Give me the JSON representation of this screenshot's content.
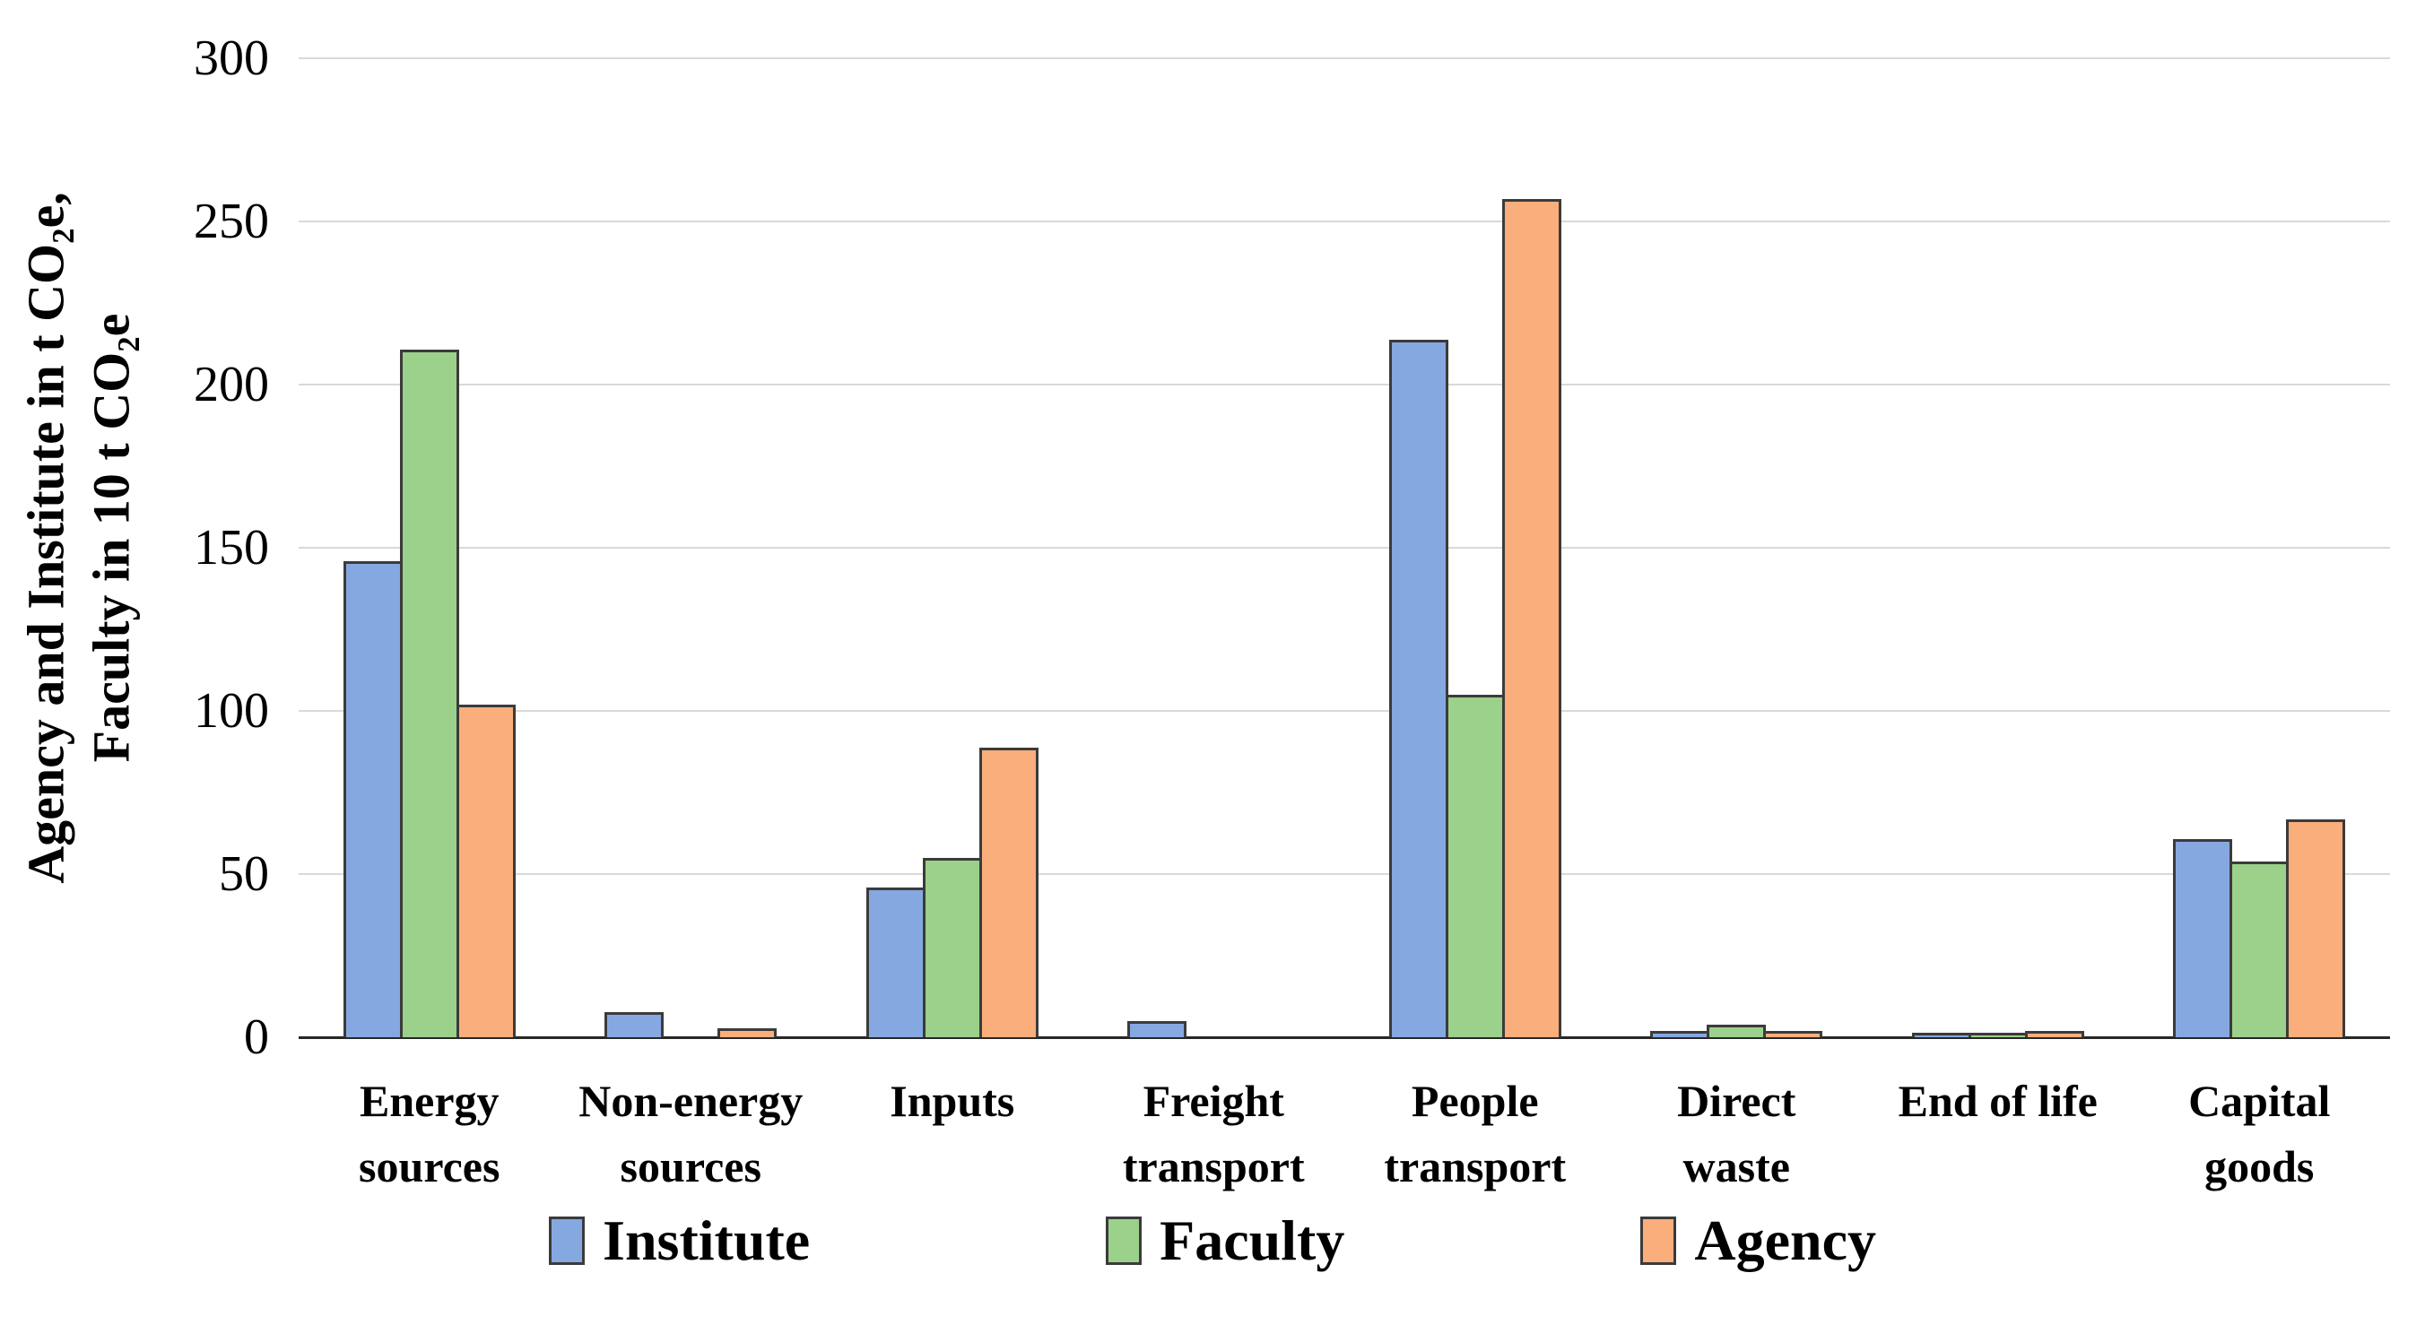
{
  "chart_data": {
    "type": "bar",
    "title": "",
    "ylabel_lines": [
      "Agency and Institute in t CO₂e,",
      "Faculty in 10 t CO₂e"
    ],
    "ylim": [
      0,
      300
    ],
    "yticks": [
      0,
      50,
      100,
      150,
      200,
      250,
      300
    ],
    "grid": true,
    "legend_position": "bottom",
    "categories": [
      "Energy sources",
      "Non-energy sources",
      "Inputs",
      "Freight transport",
      "People transport",
      "Direct waste",
      "End of life",
      "Capital goods"
    ],
    "category_label_lines": [
      [
        "Energy",
        "sources"
      ],
      [
        "Non-energy",
        "sources"
      ],
      [
        "Inputs"
      ],
      [
        "Freight",
        "transport"
      ],
      [
        "People",
        "transport"
      ],
      [
        "Direct",
        "waste"
      ],
      [
        "End of life"
      ],
      [
        "Capital",
        "goods"
      ]
    ],
    "series": [
      {
        "name": "Institute",
        "color": "#85A8E0",
        "values": [
          145,
          7,
          45,
          4,
          213,
          1,
          0.5,
          60
        ]
      },
      {
        "name": "Faculty",
        "color": "#9BD18A",
        "values": [
          210,
          0,
          54,
          0,
          104,
          3,
          0.5,
          53
        ]
      },
      {
        "name": "Agency",
        "color": "#FAAE7C",
        "values": [
          101,
          2,
          88,
          0,
          256,
          1,
          1,
          66
        ]
      }
    ],
    "colors": {
      "grid": "#d9d9d9",
      "axis": "#262626",
      "bar_border": "#3b3b3b",
      "text": "#000000"
    }
  }
}
